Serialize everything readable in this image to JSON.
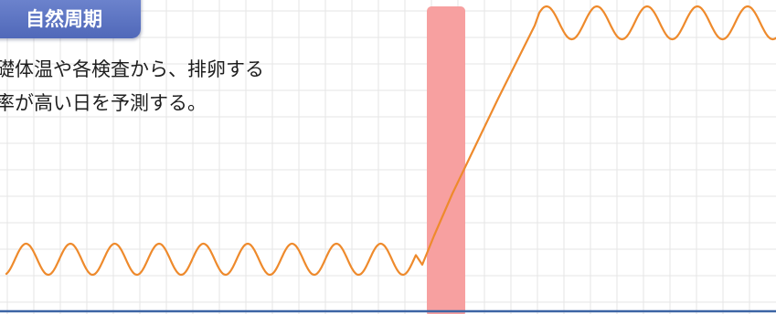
{
  "header": {
    "title": "自然周期"
  },
  "description": {
    "line1": "礎体温や各検査から、排卵する",
    "line2": "率が高い日を予測する。"
  },
  "diagram": {
    "curve_color": "#ee8a2c",
    "ovulation_band_color": "#f7a0a0",
    "baseline_color": "#3c64a4",
    "grid_color": "#e5e5e5"
  }
}
